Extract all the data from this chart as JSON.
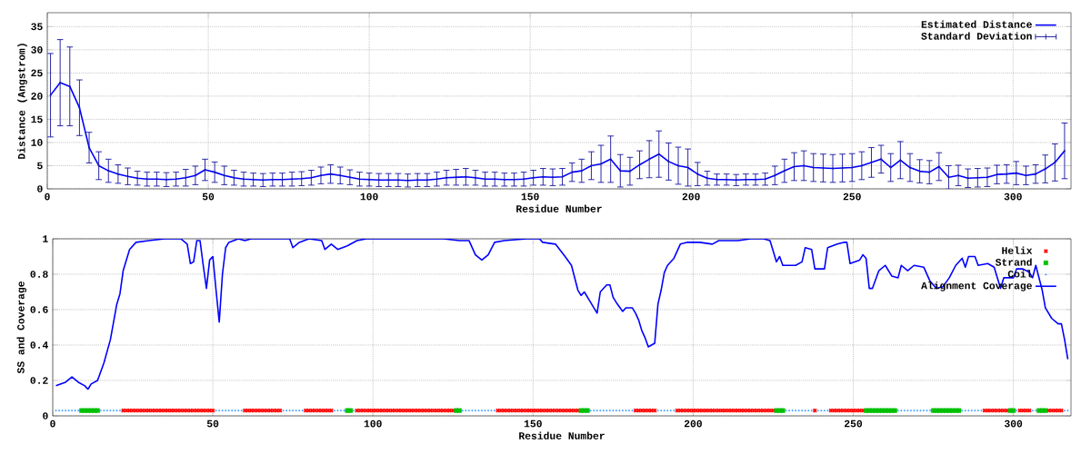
{
  "chart_data": [
    {
      "type": "line",
      "xlabel": "Residue Number",
      "ylabel": "Distance (Angstrom)",
      "xlim": [
        0,
        318
      ],
      "xticks": [
        0,
        50,
        100,
        150,
        200,
        250,
        300
      ],
      "ylim": [
        0,
        38
      ],
      "yticks": [
        0,
        5,
        10,
        15,
        20,
        25,
        30,
        35
      ],
      "grid": true,
      "legend": "top right",
      "x": [
        1,
        4,
        7,
        10,
        13,
        16,
        19,
        22,
        25,
        28,
        31,
        34,
        37,
        40,
        43,
        46,
        49,
        52,
        55,
        58,
        61,
        64,
        67,
        70,
        73,
        76,
        79,
        82,
        85,
        88,
        91,
        94,
        97,
        100,
        103,
        106,
        109,
        112,
        115,
        118,
        121,
        124,
        127,
        130,
        133,
        136,
        139,
        142,
        145,
        148,
        151,
        154,
        157,
        160,
        163,
        166,
        169,
        172,
        175,
        178,
        181,
        184,
        187,
        190,
        193,
        196,
        199,
        202,
        205,
        208,
        211,
        214,
        217,
        220,
        223,
        226,
        229,
        232,
        235,
        238,
        241,
        244,
        247,
        250,
        253,
        256,
        259,
        262,
        265,
        268,
        271,
        274,
        277,
        280,
        283,
        286,
        289,
        292,
        295,
        298,
        301,
        304,
        307,
        310,
        313,
        316
      ],
      "series": [
        {
          "name": "Estimated Distance",
          "marker": "none",
          "color": "#0000ff",
          "values": [
            20.2,
            22.9,
            22.1,
            17.5,
            8.9,
            5.0,
            3.9,
            3.2,
            2.7,
            2.3,
            2.1,
            2.1,
            2.0,
            2.1,
            2.4,
            2.9,
            4.1,
            3.6,
            2.9,
            2.4,
            2.1,
            2.0,
            1.9,
            2.0,
            2.0,
            2.1,
            2.2,
            2.4,
            2.9,
            3.2,
            2.9,
            2.5,
            2.1,
            2.0,
            1.9,
            1.9,
            1.9,
            1.8,
            1.9,
            1.9,
            2.1,
            2.4,
            2.5,
            2.6,
            2.4,
            2.1,
            2.1,
            2.0,
            2.0,
            2.1,
            2.4,
            2.6,
            2.5,
            2.6,
            3.6,
            3.9,
            5.0,
            5.4,
            6.4,
            3.9,
            3.8,
            5.2,
            6.4,
            7.5,
            5.9,
            5.0,
            4.6,
            3.2,
            2.3,
            2.0,
            2.0,
            1.9,
            2.0,
            2.0,
            2.1,
            2.9,
            3.9,
            4.8,
            5.0,
            4.6,
            4.5,
            4.4,
            4.5,
            4.6,
            5.0,
            5.7,
            6.4,
            4.6,
            6.2,
            4.6,
            3.8,
            3.6,
            4.8,
            2.5,
            2.9,
            2.3,
            2.4,
            2.5,
            3.1,
            3.2,
            3.4,
            2.9,
            3.2,
            4.3,
            5.7,
            8.2
          ]
        },
        {
          "name": "Standard Deviation",
          "type": "scatter",
          "marker": "circle",
          "color": "#1a1aa0",
          "values": [
            20.2,
            22.9,
            22.1,
            17.5,
            8.9,
            5.0,
            3.9,
            3.2,
            2.7,
            2.3,
            2.1,
            2.1,
            2.0,
            2.1,
            2.4,
            2.9,
            4.1,
            3.6,
            2.9,
            2.4,
            2.1,
            2.0,
            1.9,
            2.0,
            2.0,
            2.1,
            2.2,
            2.4,
            2.9,
            3.2,
            2.9,
            2.5,
            2.1,
            2.0,
            1.9,
            1.9,
            1.9,
            1.8,
            1.9,
            1.9,
            2.1,
            2.4,
            2.5,
            2.6,
            2.4,
            2.1,
            2.1,
            2.0,
            2.0,
            2.1,
            2.4,
            2.6,
            2.5,
            2.6,
            3.6,
            3.9,
            5.0,
            5.4,
            6.4,
            3.9,
            3.8,
            5.2,
            6.4,
            7.5,
            5.9,
            5.0,
            4.6,
            3.2,
            2.3,
            2.0,
            2.0,
            1.9,
            2.0,
            2.0,
            2.1,
            2.9,
            3.9,
            4.8,
            5.0,
            4.6,
            4.5,
            4.4,
            4.5,
            4.6,
            5.0,
            5.7,
            6.4,
            4.6,
            6.2,
            4.6,
            3.8,
            3.6,
            4.8,
            2.5,
            2.9,
            2.3,
            2.4,
            2.5,
            3.1,
            3.2,
            3.4,
            2.9,
            3.2,
            4.3,
            5.7,
            8.2
          ],
          "errors": [
            9,
            9.3,
            8.5,
            6,
            3.3,
            3,
            2.5,
            2,
            1.8,
            1.5,
            1.5,
            1.5,
            1.5,
            1.5,
            1.8,
            2,
            2.3,
            2.2,
            2,
            1.6,
            1.5,
            1.4,
            1.4,
            1.4,
            1.4,
            1.5,
            1.5,
            1.6,
            1.8,
            2,
            1.8,
            1.6,
            1.5,
            1.4,
            1.4,
            1.4,
            1.4,
            1.4,
            1.4,
            1.4,
            1.5,
            1.6,
            1.7,
            1.8,
            1.6,
            1.5,
            1.5,
            1.4,
            1.4,
            1.5,
            1.6,
            1.8,
            1.8,
            1.8,
            2,
            2.5,
            3,
            4,
            5,
            3.5,
            3,
            3,
            4,
            5,
            4,
            4,
            4,
            2.5,
            1.5,
            1.2,
            1.2,
            1.2,
            1.2,
            1.2,
            1.3,
            2,
            2.5,
            3,
            3.2,
            3,
            3,
            3,
            3,
            3,
            3,
            3.2,
            3,
            3,
            4,
            3,
            2.5,
            2.5,
            3,
            2.5,
            2.2,
            2,
            2,
            2,
            2,
            2,
            2.5,
            2,
            2,
            3,
            4,
            6
          ]
        }
      ]
    },
    {
      "type": "line",
      "xlabel": "Residue Number",
      "ylabel": "SS and Coverage",
      "xlim": [
        0,
        318
      ],
      "xticks": [
        0,
        50,
        100,
        150,
        200,
        250,
        300
      ],
      "ylim": [
        0,
        1
      ],
      "yticks": [
        0,
        0.2,
        0.4,
        0.6,
        0.8,
        1
      ],
      "grid": true,
      "legend": "top right",
      "series": [
        {
          "name": "Helix",
          "type": "scatter",
          "marker": "cross",
          "color": "#ff0000",
          "x": [
            22,
            23,
            24,
            25,
            26,
            27,
            28,
            29,
            30,
            31,
            32,
            33,
            34,
            35,
            36,
            37,
            38,
            39,
            40,
            41,
            42,
            43,
            44,
            45,
            46,
            47,
            48,
            49,
            50,
            60,
            61,
            62,
            63,
            64,
            65,
            66,
            67,
            68,
            69,
            70,
            71,
            79,
            80,
            81,
            82,
            83,
            84,
            85,
            86,
            87,
            95,
            96,
            97,
            98,
            99,
            100,
            101,
            102,
            103,
            104,
            105,
            106,
            107,
            108,
            109,
            110,
            111,
            112,
            113,
            114,
            115,
            116,
            117,
            118,
            119,
            120,
            121,
            122,
            123,
            124,
            125,
            139,
            140,
            141,
            142,
            143,
            144,
            145,
            146,
            147,
            148,
            149,
            150,
            151,
            152,
            153,
            154,
            155,
            156,
            157,
            158,
            159,
            160,
            161,
            162,
            163,
            164,
            182,
            183,
            184,
            185,
            186,
            187,
            188,
            195,
            196,
            197,
            198,
            199,
            200,
            201,
            202,
            203,
            204,
            205,
            206,
            207,
            208,
            209,
            210,
            211,
            212,
            213,
            214,
            215,
            216,
            217,
            218,
            219,
            220,
            221,
            222,
            223,
            224,
            225,
            238,
            243,
            244,
            245,
            246,
            247,
            248,
            249,
            250,
            251,
            252,
            253,
            291,
            292,
            293,
            294,
            295,
            296,
            297,
            298,
            302,
            303,
            304,
            305,
            311,
            312,
            313,
            314,
            315
          ],
          "values": [
            0.03,
            0.03,
            0.03,
            0.03,
            0.03,
            0.03,
            0.03,
            0.03,
            0.03,
            0.03,
            0.03,
            0.03,
            0.03,
            0.03,
            0.03,
            0.03,
            0.03,
            0.03,
            0.03,
            0.03,
            0.03,
            0.03,
            0.03,
            0.03,
            0.03,
            0.03,
            0.03,
            0.03,
            0.03,
            0.03,
            0.03,
            0.03,
            0.03,
            0.03,
            0.03,
            0.03,
            0.03,
            0.03,
            0.03,
            0.03,
            0.03,
            0.03,
            0.03,
            0.03,
            0.03,
            0.03,
            0.03,
            0.03,
            0.03,
            0.03,
            0.03,
            0.03,
            0.03,
            0.03,
            0.03,
            0.03,
            0.03,
            0.03,
            0.03,
            0.03,
            0.03,
            0.03,
            0.03,
            0.03,
            0.03,
            0.03,
            0.03,
            0.03,
            0.03,
            0.03,
            0.03,
            0.03,
            0.03,
            0.03,
            0.03,
            0.03,
            0.03,
            0.03,
            0.03,
            0.03,
            0.03,
            0.03,
            0.03,
            0.03,
            0.03,
            0.03,
            0.03,
            0.03,
            0.03,
            0.03,
            0.03,
            0.03,
            0.03,
            0.03,
            0.03,
            0.03,
            0.03,
            0.03,
            0.03,
            0.03,
            0.03,
            0.03,
            0.03,
            0.03,
            0.03,
            0.03,
            0.03,
            0.03,
            0.03,
            0.03,
            0.03,
            0.03,
            0.03,
            0.03,
            0.03,
            0.03,
            0.03,
            0.03,
            0.03,
            0.03,
            0.03,
            0.03,
            0.03,
            0.03,
            0.03,
            0.03,
            0.03,
            0.03,
            0.03,
            0.03,
            0.03,
            0.03,
            0.03,
            0.03,
            0.03,
            0.03,
            0.03,
            0.03,
            0.03,
            0.03,
            0.03,
            0.03,
            0.03,
            0.03,
            0.03,
            0.03,
            0.03,
            0.03,
            0.03,
            0.03,
            0.03,
            0.03,
            0.03,
            0.03,
            0.03,
            0.03,
            0.03,
            0.03,
            0.03,
            0.03,
            0.03,
            0.03,
            0.03,
            0.03,
            0.03,
            0.03,
            0.03,
            0.03,
            0.03,
            0.03,
            0.03,
            0.03,
            0.03,
            0.03
          ]
        },
        {
          "name": "Strand",
          "type": "scatter",
          "marker": "square",
          "color": "#00c000",
          "x": [
            9,
            10,
            11,
            12,
            13,
            14,
            92,
            93,
            126,
            127,
            165,
            166,
            167,
            226,
            227,
            228,
            254,
            255,
            256,
            257,
            258,
            259,
            260,
            261,
            262,
            263,
            275,
            276,
            277,
            278,
            279,
            280,
            281,
            282,
            283,
            299,
            300,
            308,
            309,
            310
          ],
          "values": [
            0.03,
            0.03,
            0.03,
            0.03,
            0.03,
            0.03,
            0.03,
            0.03,
            0.03,
            0.03,
            0.03,
            0.03,
            0.03,
            0.03,
            0.03,
            0.03,
            0.03,
            0.03,
            0.03,
            0.03,
            0.03,
            0.03,
            0.03,
            0.03,
            0.03,
            0.03,
            0.03,
            0.03,
            0.03,
            0.03,
            0.03,
            0.03,
            0.03,
            0.03,
            0.03,
            0.03,
            0.03,
            0.03,
            0.03,
            0.03
          ]
        },
        {
          "name": "Coil",
          "type": "scatter",
          "marker": "circle",
          "color": "#3399ff",
          "x": [
            1,
            2,
            3,
            4,
            5,
            6,
            7,
            8,
            15,
            16,
            17,
            18,
            19,
            20,
            21,
            51,
            52,
            53,
            54,
            55,
            56,
            57,
            58,
            59,
            72,
            73,
            74,
            75,
            76,
            77,
            78,
            88,
            89,
            90,
            91,
            94,
            128,
            129,
            130,
            131,
            132,
            133,
            134,
            135,
            136,
            137,
            138,
            168,
            169,
            170,
            171,
            172,
            173,
            174,
            175,
            176,
            177,
            178,
            179,
            180,
            181,
            189,
            190,
            191,
            192,
            193,
            194,
            229,
            230,
            231,
            232,
            233,
            234,
            235,
            236,
            237,
            239,
            240,
            241,
            242,
            264,
            265,
            266,
            267,
            268,
            269,
            270,
            271,
            272,
            273,
            274,
            284,
            285,
            286,
            287,
            288,
            289,
            290,
            301,
            306,
            307,
            316,
            317
          ],
          "values": [
            0.03,
            0.03,
            0.03,
            0.03,
            0.03,
            0.03,
            0.03,
            0.03,
            0.03,
            0.03,
            0.03,
            0.03,
            0.03,
            0.03,
            0.03,
            0.03,
            0.03,
            0.03,
            0.03,
            0.03,
            0.03,
            0.03,
            0.03,
            0.03,
            0.03,
            0.03,
            0.03,
            0.03,
            0.03,
            0.03,
            0.03,
            0.03,
            0.03,
            0.03,
            0.03,
            0.03,
            0.03,
            0.03,
            0.03,
            0.03,
            0.03,
            0.03,
            0.03,
            0.03,
            0.03,
            0.03,
            0.03,
            0.03,
            0.03,
            0.03,
            0.03,
            0.03,
            0.03,
            0.03,
            0.03,
            0.03,
            0.03,
            0.03,
            0.03,
            0.03,
            0.03,
            0.03,
            0.03,
            0.03,
            0.03,
            0.03,
            0.03,
            0.03,
            0.03,
            0.03,
            0.03,
            0.03,
            0.03,
            0.03,
            0.03,
            0.03,
            0.03,
            0.03,
            0.03,
            0.03,
            0.03,
            0.03,
            0.03,
            0.03,
            0.03,
            0.03,
            0.03,
            0.03,
            0.03,
            0.03,
            0.03,
            0.03,
            0.03,
            0.03,
            0.03,
            0.03,
            0.03,
            0.03,
            0.03,
            0.03,
            0.03,
            0.03,
            0.03
          ]
        },
        {
          "name": "Alignment Coverage",
          "marker": "none",
          "color": "#0000ff",
          "x": [
            1,
            4,
            6,
            8,
            10,
            11,
            12,
            14,
            16,
            18,
            20,
            21,
            22,
            24,
            26,
            30,
            35,
            40,
            42,
            43,
            44,
            45,
            46,
            47,
            48,
            49,
            50,
            51,
            52,
            53,
            54,
            55,
            58,
            60,
            62,
            70,
            74,
            75,
            77,
            80,
            84,
            85,
            87,
            89,
            92,
            95,
            98,
            110,
            122,
            127,
            130,
            132,
            134,
            136,
            138,
            141,
            148,
            150,
            152,
            153,
            157,
            160,
            162,
            164,
            165,
            166,
            167,
            168,
            169,
            170,
            171,
            173,
            174,
            175,
            176,
            178,
            179,
            181,
            182,
            183,
            184,
            185,
            186,
            187,
            188,
            189,
            190,
            191,
            192,
            194,
            195,
            196,
            198,
            202,
            206,
            208,
            214,
            218,
            222,
            224,
            226,
            227,
            228,
            232,
            234,
            235,
            237,
            238,
            241,
            242,
            245,
            247,
            248,
            249,
            252,
            253,
            254,
            255,
            256,
            258,
            260,
            262,
            264,
            265,
            267,
            269,
            272,
            274,
            276,
            278,
            280,
            282,
            284,
            285,
            286,
            288,
            289,
            292,
            294,
            295,
            296,
            297,
            300,
            301,
            303,
            305,
            306,
            307,
            309,
            310,
            311,
            312,
            314,
            315,
            316,
            317
          ],
          "values": [
            0.17,
            0.19,
            0.22,
            0.19,
            0.17,
            0.15,
            0.18,
            0.2,
            0.3,
            0.43,
            0.63,
            0.69,
            0.82,
            0.94,
            0.98,
            0.99,
            1.0,
            1.0,
            0.97,
            0.86,
            0.87,
            0.99,
            0.99,
            0.85,
            0.72,
            0.88,
            0.9,
            0.71,
            0.53,
            0.8,
            0.95,
            0.98,
            1.0,
            0.99,
            1.0,
            1.0,
            1.0,
            0.95,
            0.98,
            1.0,
            0.99,
            0.94,
            0.97,
            0.94,
            0.96,
            0.99,
            1.0,
            1.0,
            1.0,
            0.99,
            0.99,
            0.91,
            0.88,
            0.91,
            0.98,
            0.99,
            1.0,
            1.0,
            1.0,
            0.98,
            0.97,
            0.9,
            0.85,
            0.71,
            0.68,
            0.7,
            0.67,
            0.64,
            0.61,
            0.58,
            0.7,
            0.74,
            0.74,
            0.67,
            0.64,
            0.59,
            0.61,
            0.61,
            0.58,
            0.54,
            0.48,
            0.44,
            0.39,
            0.4,
            0.41,
            0.63,
            0.71,
            0.81,
            0.85,
            0.89,
            0.93,
            0.97,
            0.98,
            0.98,
            0.97,
            0.99,
            0.99,
            1.0,
            1.0,
            0.99,
            0.87,
            0.9,
            0.85,
            0.85,
            0.87,
            0.95,
            0.94,
            0.83,
            0.83,
            0.95,
            0.97,
            0.98,
            0.98,
            0.86,
            0.88,
            0.91,
            0.89,
            0.72,
            0.72,
            0.82,
            0.85,
            0.79,
            0.78,
            0.85,
            0.82,
            0.85,
            0.84,
            0.76,
            0.72,
            0.73,
            0.78,
            0.85,
            0.89,
            0.84,
            0.9,
            0.9,
            0.85,
            0.86,
            0.84,
            0.78,
            0.72,
            0.78,
            0.78,
            0.83,
            0.83,
            0.81,
            0.78,
            0.85,
            0.71,
            0.61,
            0.58,
            0.55,
            0.52,
            0.52,
            0.43,
            0.32
          ]
        }
      ]
    }
  ]
}
